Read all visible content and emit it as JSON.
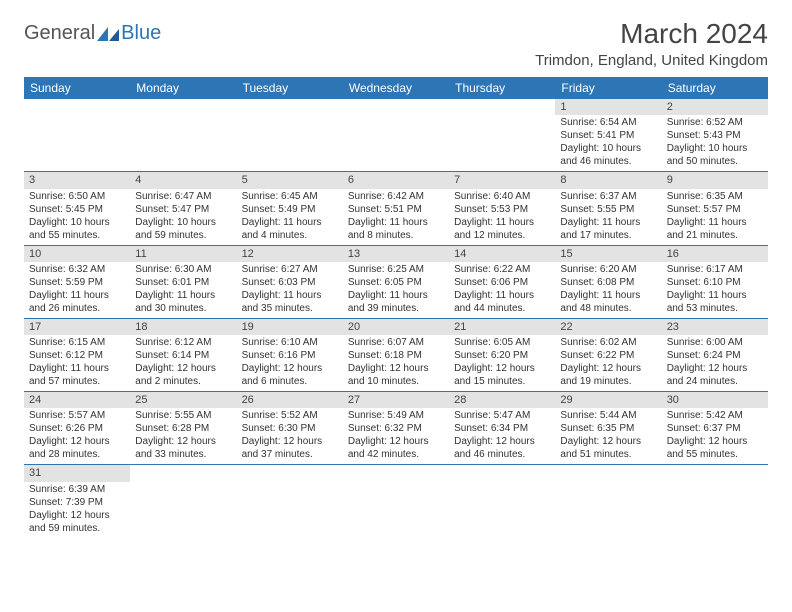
{
  "logo": {
    "part1": "General",
    "part2": "Blue"
  },
  "title": "March 2024",
  "location": "Trimdon, England, United Kingdom",
  "colors": {
    "header_bg": "#2e75b6",
    "daynum_bg": "#e3e3e3",
    "row_border": "#2e75b6",
    "text": "#333333",
    "title_text": "#444444"
  },
  "weekdays": [
    "Sunday",
    "Monday",
    "Tuesday",
    "Wednesday",
    "Thursday",
    "Friday",
    "Saturday"
  ],
  "weeks": [
    [
      null,
      null,
      null,
      null,
      null,
      {
        "n": "1",
        "sr": "Sunrise: 6:54 AM",
        "ss": "Sunset: 5:41 PM",
        "dl": "Daylight: 10 hours and 46 minutes."
      },
      {
        "n": "2",
        "sr": "Sunrise: 6:52 AM",
        "ss": "Sunset: 5:43 PM",
        "dl": "Daylight: 10 hours and 50 minutes."
      }
    ],
    [
      {
        "n": "3",
        "sr": "Sunrise: 6:50 AM",
        "ss": "Sunset: 5:45 PM",
        "dl": "Daylight: 10 hours and 55 minutes."
      },
      {
        "n": "4",
        "sr": "Sunrise: 6:47 AM",
        "ss": "Sunset: 5:47 PM",
        "dl": "Daylight: 10 hours and 59 minutes."
      },
      {
        "n": "5",
        "sr": "Sunrise: 6:45 AM",
        "ss": "Sunset: 5:49 PM",
        "dl": "Daylight: 11 hours and 4 minutes."
      },
      {
        "n": "6",
        "sr": "Sunrise: 6:42 AM",
        "ss": "Sunset: 5:51 PM",
        "dl": "Daylight: 11 hours and 8 minutes."
      },
      {
        "n": "7",
        "sr": "Sunrise: 6:40 AM",
        "ss": "Sunset: 5:53 PM",
        "dl": "Daylight: 11 hours and 12 minutes."
      },
      {
        "n": "8",
        "sr": "Sunrise: 6:37 AM",
        "ss": "Sunset: 5:55 PM",
        "dl": "Daylight: 11 hours and 17 minutes."
      },
      {
        "n": "9",
        "sr": "Sunrise: 6:35 AM",
        "ss": "Sunset: 5:57 PM",
        "dl": "Daylight: 11 hours and 21 minutes."
      }
    ],
    [
      {
        "n": "10",
        "sr": "Sunrise: 6:32 AM",
        "ss": "Sunset: 5:59 PM",
        "dl": "Daylight: 11 hours and 26 minutes."
      },
      {
        "n": "11",
        "sr": "Sunrise: 6:30 AM",
        "ss": "Sunset: 6:01 PM",
        "dl": "Daylight: 11 hours and 30 minutes."
      },
      {
        "n": "12",
        "sr": "Sunrise: 6:27 AM",
        "ss": "Sunset: 6:03 PM",
        "dl": "Daylight: 11 hours and 35 minutes."
      },
      {
        "n": "13",
        "sr": "Sunrise: 6:25 AM",
        "ss": "Sunset: 6:05 PM",
        "dl": "Daylight: 11 hours and 39 minutes."
      },
      {
        "n": "14",
        "sr": "Sunrise: 6:22 AM",
        "ss": "Sunset: 6:06 PM",
        "dl": "Daylight: 11 hours and 44 minutes."
      },
      {
        "n": "15",
        "sr": "Sunrise: 6:20 AM",
        "ss": "Sunset: 6:08 PM",
        "dl": "Daylight: 11 hours and 48 minutes."
      },
      {
        "n": "16",
        "sr": "Sunrise: 6:17 AM",
        "ss": "Sunset: 6:10 PM",
        "dl": "Daylight: 11 hours and 53 minutes."
      }
    ],
    [
      {
        "n": "17",
        "sr": "Sunrise: 6:15 AM",
        "ss": "Sunset: 6:12 PM",
        "dl": "Daylight: 11 hours and 57 minutes."
      },
      {
        "n": "18",
        "sr": "Sunrise: 6:12 AM",
        "ss": "Sunset: 6:14 PM",
        "dl": "Daylight: 12 hours and 2 minutes."
      },
      {
        "n": "19",
        "sr": "Sunrise: 6:10 AM",
        "ss": "Sunset: 6:16 PM",
        "dl": "Daylight: 12 hours and 6 minutes."
      },
      {
        "n": "20",
        "sr": "Sunrise: 6:07 AM",
        "ss": "Sunset: 6:18 PM",
        "dl": "Daylight: 12 hours and 10 minutes."
      },
      {
        "n": "21",
        "sr": "Sunrise: 6:05 AM",
        "ss": "Sunset: 6:20 PM",
        "dl": "Daylight: 12 hours and 15 minutes."
      },
      {
        "n": "22",
        "sr": "Sunrise: 6:02 AM",
        "ss": "Sunset: 6:22 PM",
        "dl": "Daylight: 12 hours and 19 minutes."
      },
      {
        "n": "23",
        "sr": "Sunrise: 6:00 AM",
        "ss": "Sunset: 6:24 PM",
        "dl": "Daylight: 12 hours and 24 minutes."
      }
    ],
    [
      {
        "n": "24",
        "sr": "Sunrise: 5:57 AM",
        "ss": "Sunset: 6:26 PM",
        "dl": "Daylight: 12 hours and 28 minutes."
      },
      {
        "n": "25",
        "sr": "Sunrise: 5:55 AM",
        "ss": "Sunset: 6:28 PM",
        "dl": "Daylight: 12 hours and 33 minutes."
      },
      {
        "n": "26",
        "sr": "Sunrise: 5:52 AM",
        "ss": "Sunset: 6:30 PM",
        "dl": "Daylight: 12 hours and 37 minutes."
      },
      {
        "n": "27",
        "sr": "Sunrise: 5:49 AM",
        "ss": "Sunset: 6:32 PM",
        "dl": "Daylight: 12 hours and 42 minutes."
      },
      {
        "n": "28",
        "sr": "Sunrise: 5:47 AM",
        "ss": "Sunset: 6:34 PM",
        "dl": "Daylight: 12 hours and 46 minutes."
      },
      {
        "n": "29",
        "sr": "Sunrise: 5:44 AM",
        "ss": "Sunset: 6:35 PM",
        "dl": "Daylight: 12 hours and 51 minutes."
      },
      {
        "n": "30",
        "sr": "Sunrise: 5:42 AM",
        "ss": "Sunset: 6:37 PM",
        "dl": "Daylight: 12 hours and 55 minutes."
      }
    ],
    [
      {
        "n": "31",
        "sr": "Sunrise: 6:39 AM",
        "ss": "Sunset: 7:39 PM",
        "dl": "Daylight: 12 hours and 59 minutes."
      },
      null,
      null,
      null,
      null,
      null,
      null
    ]
  ]
}
